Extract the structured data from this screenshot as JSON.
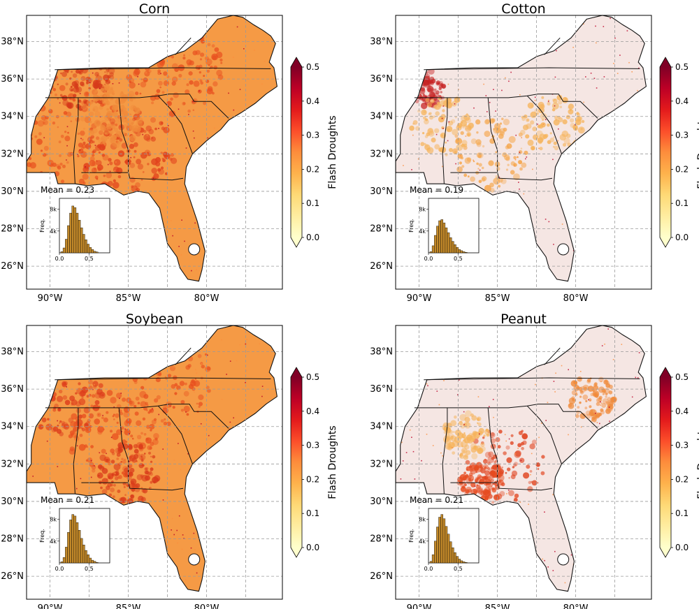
{
  "colorbar": {
    "label": "Flash Droughts",
    "ticks": [
      "0.0",
      "0.1",
      "0.2",
      "0.3",
      "0.4",
      "0.5"
    ],
    "colors": [
      "#ffffcc",
      "#ffeda0",
      "#fed976",
      "#feb24c",
      "#fd8d3c",
      "#fc4e2a",
      "#e31a1c",
      "#bd0026",
      "#800026"
    ]
  },
  "axes": {
    "lat_labels": [
      "26°N",
      "28°N",
      "30°N",
      "32°N",
      "34°N",
      "36°N",
      "38°N"
    ],
    "lon_labels": [
      "90°W",
      "85°W",
      "80°W"
    ]
  },
  "histogram": {
    "y_label": "Freq.",
    "y_ticks": [
      "4k",
      "8k"
    ],
    "x_ticks": [
      "0.0",
      "0.5"
    ],
    "bar_color": "#c48a2a"
  },
  "panels": [
    {
      "title": "Corn",
      "mean_label": "Mean = 0.23",
      "mean": 0.23,
      "hist_counts": [
        0.2,
        0.9,
        2.5,
        5.0,
        7.3,
        8.6,
        8.3,
        7.3,
        6.0,
        4.6,
        3.4,
        2.4,
        1.6,
        1.0,
        0.6,
        0.3,
        0.15
      ]
    },
    {
      "title": "Cotton",
      "mean_label": "Mean = 0.19",
      "mean": 0.19,
      "hist_counts": [
        0.2,
        1.3,
        3.2,
        4.9,
        5.9,
        6.1,
        5.5,
        4.6,
        3.7,
        2.8,
        2.1,
        1.5,
        1.0,
        0.6,
        0.4,
        0.2,
        0.1
      ]
    },
    {
      "title": "Soybean",
      "mean_label": "Mean = 0.21",
      "mean": 0.21,
      "hist_counts": [
        0.2,
        1.0,
        2.9,
        5.6,
        7.9,
        8.9,
        8.6,
        7.4,
        6.0,
        4.5,
        3.3,
        2.3,
        1.5,
        0.9,
        0.5,
        0.3,
        0.1
      ]
    },
    {
      "title": "Peanut",
      "mean_label": "Mean = 0.21",
      "mean": 0.21,
      "hist_counts": [
        0.3,
        1.5,
        4.0,
        6.6,
        8.4,
        8.9,
        8.1,
        6.7,
        5.3,
        3.9,
        2.8,
        1.9,
        1.2,
        0.7,
        0.4,
        0.2,
        0.1
      ]
    }
  ]
}
